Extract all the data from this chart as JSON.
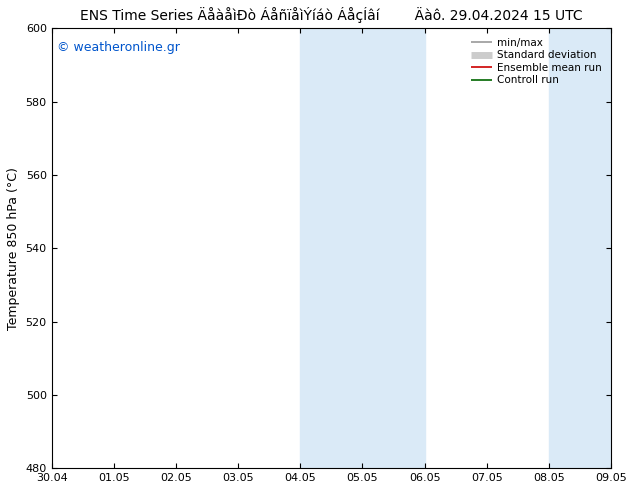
{
  "title_main": "ENS Time Series ÄåàåìÐò ÁåñïåìÝíáò ÁåçÍâí",
  "title_date": "Äàô. 29.04.2024 15 UTC",
  "ylabel": "Temperature 850 hPa (°C)",
  "xlim": [
    0,
    9
  ],
  "ylim": [
    480,
    600
  ],
  "yticks": [
    480,
    500,
    520,
    540,
    560,
    580,
    600
  ],
  "xtick_positions": [
    0,
    1,
    2,
    3,
    4,
    5,
    6,
    7,
    8,
    9
  ],
  "xtick_labels": [
    "30.04",
    "01.05",
    "02.05",
    "03.05",
    "04.05",
    "05.05",
    "06.05",
    "07.05",
    "08.05",
    "09.05"
  ],
  "shaded_regions": [
    {
      "xstart": 4.0,
      "xend": 5.0,
      "color": "#daeaf7"
    },
    {
      "xstart": 5.0,
      "xend": 6.0,
      "color": "#daeaf7"
    },
    {
      "xstart": 8.0,
      "xend": 9.0,
      "color": "#daeaf7"
    }
  ],
  "watermark_text": "© weatheronline.gr",
  "watermark_color": "#0055cc",
  "legend_items": [
    {
      "label": "min/max",
      "color": "#999999",
      "lw": 1.2
    },
    {
      "label": "Standard deviation",
      "color": "#cccccc",
      "lw": 5
    },
    {
      "label": "Ensemble mean run",
      "color": "#cc0000",
      "lw": 1.2
    },
    {
      "label": "Controll run",
      "color": "#006600",
      "lw": 1.2
    }
  ],
  "background_color": "#ffffff",
  "spine_color": "#000000",
  "title_fontsize": 10,
  "ylabel_fontsize": 9,
  "tick_fontsize": 8,
  "legend_fontsize": 7.5,
  "watermark_fontsize": 9
}
